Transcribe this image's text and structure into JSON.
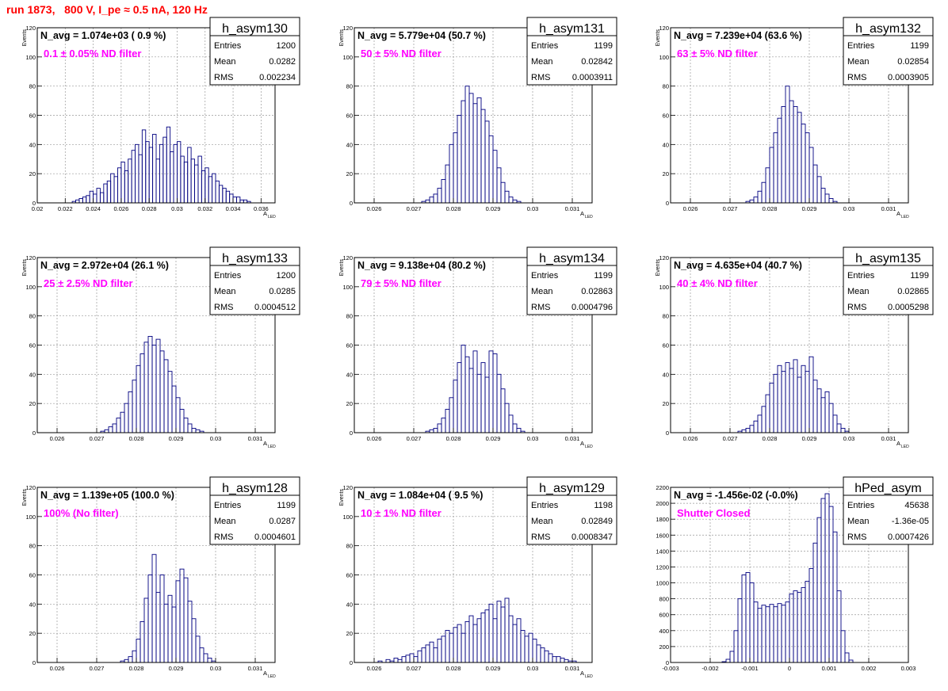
{
  "title": "run 1873,   800 V, I_pe ≈ 0.5 nA, 120 Hz",
  "colors": {
    "histogram": "#000080",
    "title": "#ff0000",
    "note": "#ff00ff"
  },
  "chart_data": [
    {
      "type": "bar",
      "name": "h_asym130",
      "navg": "N_avg = 1.074e+03 ( 0.9 %)",
      "note": "0.1 ± 0.05% ND filter",
      "stats": {
        "Entries": "1200",
        "Mean": "0.0282",
        "RMS": "0.002234"
      },
      "xlabel": "A",
      "xlabel_sub": "LED",
      "ylabel": "Events",
      "xlim": [
        0.02,
        0.037
      ],
      "ylim": [
        0,
        120
      ],
      "xticks": [
        0.02,
        0.022,
        0.024,
        0.026,
        0.028,
        0.03,
        0.032,
        0.034,
        0.036
      ],
      "xtick_labels": [
        "0.02",
        "0.022",
        "0.024",
        "0.026",
        "0.028",
        "0.03",
        "0.032",
        "0.034",
        "0.036"
      ],
      "yticks": [
        0,
        20,
        40,
        60,
        80,
        100,
        120
      ],
      "x_start": 0.02,
      "bin_width": 0.00025,
      "values": [
        0,
        0,
        0,
        0,
        0,
        0,
        0,
        0,
        0,
        0,
        1,
        2,
        3,
        4,
        5,
        8,
        6,
        10,
        7,
        13,
        15,
        20,
        18,
        24,
        28,
        22,
        30,
        36,
        40,
        33,
        50,
        42,
        38,
        47,
        30,
        40,
        45,
        52,
        35,
        40,
        42,
        32,
        28,
        38,
        30,
        26,
        32,
        22,
        24,
        18,
        20,
        15,
        12,
        10,
        8,
        6,
        4,
        4,
        2,
        2,
        1,
        0,
        0,
        0,
        0,
        0,
        0,
        0
      ]
    },
    {
      "type": "bar",
      "name": "h_asym131",
      "navg": "N_avg = 5.779e+04 (50.7 %)",
      "note": "50 ± 5% ND filter",
      "stats": {
        "Entries": "1199",
        "Mean": "0.02842",
        "RMS": "0.0003911"
      },
      "xlabel": "A",
      "xlabel_sub": "LED",
      "ylabel": "Events",
      "xlim": [
        0.0255,
        0.0315
      ],
      "ylim": [
        0,
        120
      ],
      "xticks": [
        0.026,
        0.027,
        0.028,
        0.029,
        0.03,
        0.031
      ],
      "xtick_labels": [
        "0.026",
        "0.027",
        "0.028",
        "0.029",
        "0.03",
        "0.031"
      ],
      "yticks": [
        0,
        20,
        40,
        60,
        80,
        100,
        120
      ],
      "x_start": 0.0255,
      "bin_width": 0.0001,
      "values": [
        0,
        0,
        0,
        0,
        0,
        0,
        0,
        0,
        0,
        0,
        0,
        0,
        0,
        0,
        0,
        0,
        0,
        1,
        2,
        4,
        6,
        10,
        16,
        26,
        40,
        48,
        60,
        70,
        80,
        75,
        68,
        72,
        64,
        56,
        46,
        36,
        24,
        14,
        8,
        4,
        2,
        1,
        0,
        0,
        0,
        0,
        0,
        0,
        0,
        0,
        0,
        0,
        0,
        0,
        0,
        0,
        0,
        0,
        0,
        0
      ]
    },
    {
      "type": "bar",
      "name": "h_asym132",
      "navg": "N_avg = 7.239e+04 (63.6 %)",
      "note": "63 ± 5% ND filter",
      "stats": {
        "Entries": "1199",
        "Mean": "0.02854",
        "RMS": "0.0003905"
      },
      "xlabel": "A",
      "xlabel_sub": "LED",
      "ylabel": "Events",
      "xlim": [
        0.0255,
        0.0315
      ],
      "ylim": [
        0,
        120
      ],
      "xticks": [
        0.026,
        0.027,
        0.028,
        0.029,
        0.03,
        0.031
      ],
      "xtick_labels": [
        "0.026",
        "0.027",
        "0.028",
        "0.029",
        "0.03",
        "0.031"
      ],
      "yticks": [
        0,
        20,
        40,
        60,
        80,
        100,
        120
      ],
      "x_start": 0.0255,
      "bin_width": 0.0001,
      "values": [
        0,
        0,
        0,
        0,
        0,
        0,
        0,
        0,
        0,
        0,
        0,
        0,
        0,
        0,
        0,
        0,
        0,
        0,
        0,
        1,
        2,
        4,
        8,
        14,
        24,
        38,
        48,
        58,
        66,
        80,
        70,
        66,
        62,
        54,
        48,
        38,
        26,
        18,
        10,
        6,
        3,
        1,
        0,
        0,
        0,
        0,
        0,
        0,
        0,
        0,
        0,
        0,
        0,
        0,
        0,
        0,
        0,
        0,
        0,
        0
      ]
    },
    {
      "type": "bar",
      "name": "h_asym133",
      "navg": "N_avg = 2.972e+04 (26.1 %)",
      "note": "25 ± 2.5% ND filter",
      "stats": {
        "Entries": "1200",
        "Mean": "0.0285",
        "RMS": "0.0004512"
      },
      "xlabel": "A",
      "xlabel_sub": "LED",
      "ylabel": "Events",
      "xlim": [
        0.0255,
        0.0315
      ],
      "ylim": [
        0,
        120
      ],
      "xticks": [
        0.026,
        0.027,
        0.028,
        0.029,
        0.03,
        0.031
      ],
      "xtick_labels": [
        "0.026",
        "0.027",
        "0.028",
        "0.029",
        "0.03",
        "0.031"
      ],
      "yticks": [
        0,
        20,
        40,
        60,
        80,
        100,
        120
      ],
      "x_start": 0.0255,
      "bin_width": 0.0001,
      "values": [
        0,
        0,
        0,
        0,
        0,
        0,
        0,
        0,
        0,
        0,
        0,
        0,
        0,
        0,
        0,
        0,
        1,
        2,
        4,
        6,
        10,
        14,
        20,
        28,
        36,
        46,
        54,
        62,
        66,
        60,
        64,
        56,
        50,
        42,
        32,
        24,
        16,
        10,
        6,
        3,
        2,
        1,
        0,
        0,
        0,
        0,
        0,
        0,
        0,
        0,
        0,
        0,
        0,
        0,
        0,
        0,
        0,
        0,
        0,
        0
      ]
    },
    {
      "type": "bar",
      "name": "h_asym134",
      "navg": "N_avg = 9.138e+04 (80.2 %)",
      "note": "79 ± 5% ND filter",
      "stats": {
        "Entries": "1199",
        "Mean": "0.02863",
        "RMS": "0.0004796"
      },
      "xlabel": "A",
      "xlabel_sub": "LED",
      "ylabel": "Events",
      "xlim": [
        0.0255,
        0.0315
      ],
      "ylim": [
        0,
        120
      ],
      "xticks": [
        0.026,
        0.027,
        0.028,
        0.029,
        0.03,
        0.031
      ],
      "xtick_labels": [
        "0.026",
        "0.027",
        "0.028",
        "0.029",
        "0.03",
        "0.031"
      ],
      "yticks": [
        0,
        20,
        40,
        60,
        80,
        100,
        120
      ],
      "x_start": 0.0255,
      "bin_width": 0.0001,
      "values": [
        0,
        0,
        0,
        0,
        0,
        0,
        0,
        0,
        0,
        0,
        0,
        0,
        0,
        0,
        0,
        0,
        0,
        0,
        1,
        2,
        3,
        6,
        10,
        16,
        24,
        36,
        48,
        60,
        52,
        44,
        56,
        40,
        48,
        38,
        56,
        54,
        40,
        30,
        20,
        12,
        6,
        3,
        1,
        0,
        0,
        0,
        0,
        0,
        0,
        0,
        0,
        0,
        0,
        0,
        0,
        0,
        0,
        0,
        0,
        0
      ]
    },
    {
      "type": "bar",
      "name": "h_asym135",
      "navg": "N_avg = 4.635e+04 (40.7 %)",
      "note": "40 ± 4% ND filter",
      "stats": {
        "Entries": "1199",
        "Mean": "0.02865",
        "RMS": "0.0005298"
      },
      "xlabel": "A",
      "xlabel_sub": "LED",
      "ylabel": "Events",
      "xlim": [
        0.0255,
        0.0315
      ],
      "ylim": [
        0,
        120
      ],
      "xticks": [
        0.026,
        0.027,
        0.028,
        0.029,
        0.03,
        0.031
      ],
      "xtick_labels": [
        "0.026",
        "0.027",
        "0.028",
        "0.029",
        "0.03",
        "0.031"
      ],
      "yticks": [
        0,
        20,
        40,
        60,
        80,
        100,
        120
      ],
      "x_start": 0.0255,
      "bin_width": 0.0001,
      "values": [
        0,
        0,
        0,
        0,
        0,
        0,
        0,
        0,
        0,
        0,
        0,
        0,
        0,
        0,
        0,
        0,
        0,
        1,
        2,
        3,
        5,
        8,
        12,
        18,
        26,
        34,
        40,
        46,
        42,
        48,
        44,
        50,
        38,
        46,
        42,
        52,
        36,
        30,
        24,
        28,
        20,
        12,
        6,
        3,
        1,
        0,
        0,
        0,
        0,
        0,
        0,
        0,
        0,
        0,
        0,
        0,
        0,
        0,
        0,
        0
      ]
    },
    {
      "type": "bar",
      "name": "h_asym128",
      "navg": "N_avg = 1.139e+05 (100.0 %)",
      "note": "100% (No filter)",
      "stats": {
        "Entries": "1199",
        "Mean": "0.0287",
        "RMS": "0.0004601"
      },
      "xlabel": "A",
      "xlabel_sub": "LED",
      "ylabel": "Events",
      "xlim": [
        0.0255,
        0.0315
      ],
      "ylim": [
        0,
        120
      ],
      "xticks": [
        0.026,
        0.027,
        0.028,
        0.029,
        0.03,
        0.031
      ],
      "xtick_labels": [
        "0.026",
        "0.027",
        "0.028",
        "0.029",
        "0.03",
        "0.031"
      ],
      "yticks": [
        0,
        20,
        40,
        60,
        80,
        100,
        120
      ],
      "x_start": 0.0255,
      "bin_width": 0.0001,
      "values": [
        0,
        0,
        0,
        0,
        0,
        0,
        0,
        0,
        0,
        0,
        0,
        0,
        0,
        0,
        0,
        0,
        0,
        0,
        0,
        0,
        0,
        1,
        2,
        4,
        8,
        16,
        28,
        44,
        60,
        74,
        48,
        60,
        40,
        46,
        38,
        56,
        64,
        58,
        42,
        30,
        18,
        10,
        6,
        3,
        1,
        0,
        0,
        0,
        0,
        0,
        0,
        0,
        0,
        0,
        0,
        0,
        0,
        0,
        0,
        0
      ]
    },
    {
      "type": "bar",
      "name": "h_asym129",
      "navg": "N_avg = 1.084e+04 ( 9.5 %)",
      "note": "10 ± 1% ND filter",
      "stats": {
        "Entries": "1198",
        "Mean": "0.02849",
        "RMS": "0.0008347"
      },
      "xlabel": "A",
      "xlabel_sub": "LED",
      "ylabel": "Events",
      "xlim": [
        0.0255,
        0.0315
      ],
      "ylim": [
        0,
        120
      ],
      "xticks": [
        0.026,
        0.027,
        0.028,
        0.029,
        0.03,
        0.031
      ],
      "xtick_labels": [
        "0.026",
        "0.027",
        "0.028",
        "0.029",
        "0.03",
        "0.031"
      ],
      "yticks": [
        0,
        20,
        40,
        60,
        80,
        100,
        120
      ],
      "x_start": 0.0255,
      "bin_width": 0.0001,
      "values": [
        0,
        0,
        0,
        0,
        0,
        0,
        1,
        0,
        2,
        1,
        3,
        2,
        4,
        5,
        6,
        4,
        8,
        10,
        12,
        14,
        10,
        16,
        18,
        22,
        20,
        24,
        26,
        20,
        28,
        32,
        26,
        30,
        34,
        36,
        40,
        30,
        42,
        38,
        44,
        32,
        26,
        30,
        22,
        18,
        20,
        16,
        12,
        10,
        8,
        6,
        4,
        4,
        3,
        2,
        1,
        1,
        0,
        0,
        0,
        0
      ]
    },
    {
      "type": "bar",
      "name": "hPed_asym",
      "navg": "N_avg = -1.456e-02 (-0.0%)",
      "note": "Shutter Closed",
      "stats": {
        "Entries": "45638",
        "Mean": "-1.36e-05",
        "RMS": "0.0007426"
      },
      "xlabel": "",
      "xlabel_sub": "",
      "ylabel": "",
      "xlim": [
        -0.003,
        0.003
      ],
      "ylim": [
        0,
        2200
      ],
      "xticks": [
        -0.003,
        -0.002,
        -0.001,
        0,
        0.001,
        0.002,
        0.003
      ],
      "xtick_labels": [
        "-0.003",
        "-0.002",
        "-0.001",
        "0",
        "0.001",
        "0.002",
        "0.003"
      ],
      "yticks": [
        0,
        200,
        400,
        600,
        800,
        1000,
        1200,
        1400,
        1600,
        1800,
        2000,
        2200
      ],
      "x_start": -0.003,
      "bin_width": 0.0001,
      "values": [
        0,
        0,
        0,
        0,
        0,
        0,
        0,
        0,
        0,
        0,
        0,
        0,
        0,
        10,
        40,
        140,
        400,
        800,
        1100,
        1130,
        1000,
        760,
        680,
        720,
        700,
        730,
        700,
        740,
        720,
        760,
        860,
        900,
        880,
        940,
        1020,
        1180,
        1500,
        1820,
        2060,
        2120,
        1960,
        1640,
        900,
        400,
        120,
        30,
        0,
        0,
        0,
        0,
        0,
        0,
        0,
        0,
        0,
        0,
        0,
        0,
        0,
        0
      ]
    }
  ]
}
